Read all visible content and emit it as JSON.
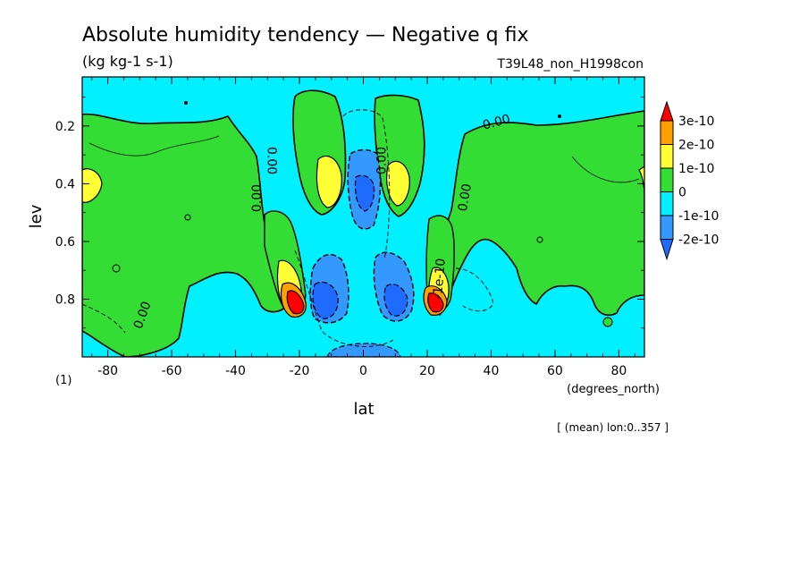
{
  "chart_data": {
    "type": "heatmap",
    "title": "Absolute humidity tendency — Negative q fix",
    "units": "(kg kg-1 s-1)",
    "run_name": "T39L48_non_H1998con",
    "xlabel": "lat",
    "x_units": "(degrees_north)",
    "ylabel": "lev",
    "panel_label": "(1)",
    "footnote": "[ (mean) lon:0..357 ]",
    "xlim": [
      -88,
      88
    ],
    "ylim": [
      1.0,
      0.03
    ],
    "x_ticks": [
      -80,
      -60,
      -40,
      -20,
      0,
      20,
      40,
      60,
      80
    ],
    "x_tick_labels": [
      "-80",
      "-60",
      "-40",
      "-20",
      "0",
      "20",
      "40",
      "60",
      "80"
    ],
    "y_ticks": [
      0.2,
      0.4,
      0.6,
      0.8
    ],
    "y_tick_labels": [
      "0.2",
      "0.4",
      "0.6",
      "0.8"
    ],
    "contour_labels": [
      "0.00",
      "0.00",
      "0.00",
      "0.00",
      "0.00",
      "0.00",
      "-1e-10"
    ],
    "colorbar": {
      "levels": [
        "3e-10",
        "2e-10",
        "1e-10",
        "0",
        "-1e-10",
        "-2e-10"
      ],
      "colors": [
        "#ff0000",
        "#ffa000",
        "#ffff33",
        "#33dd33",
        "#00f0ff",
        "#3399ff",
        "#1f6bff"
      ]
    },
    "colors": {
      "background_field": "#00f0ff",
      "positive_weak": "#33dd33",
      "positive_mid": "#ffff33",
      "positive_strong": "#ffa000",
      "positive_max": "#ff0000",
      "negative_weak": "#3399ff",
      "negative_strong": "#1f6bff"
    }
  }
}
